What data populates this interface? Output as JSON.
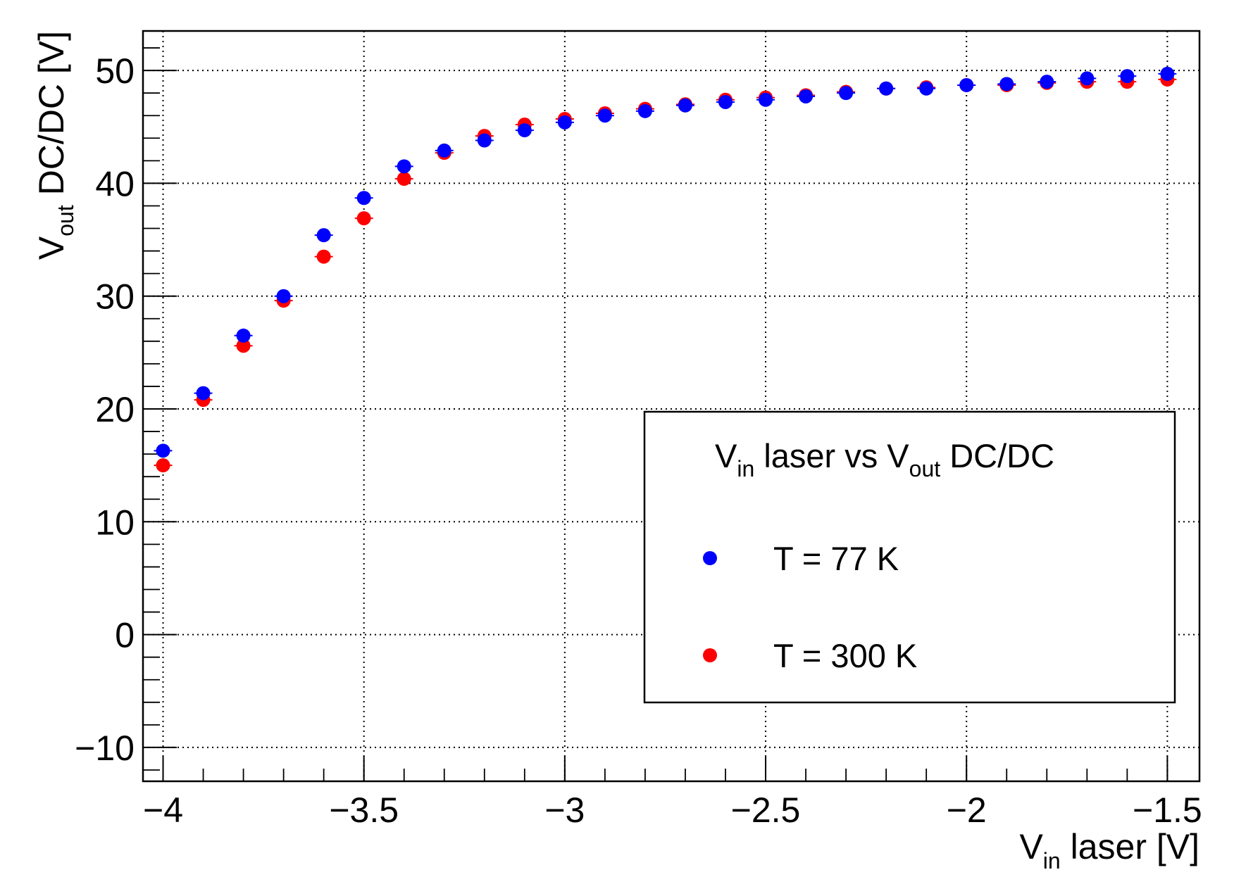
{
  "chart_data": {
    "type": "scatter",
    "title": "",
    "xlabel": {
      "main": "V",
      "sub": "in",
      "rest": " laser [V]"
    },
    "ylabel": {
      "main": "V",
      "sub": "out",
      "rest": " DC/DC [V]"
    },
    "xlim": [
      -4.05,
      -1.42
    ],
    "ylim": [
      -13,
      53.5
    ],
    "grid": true,
    "xticks": [
      -4,
      -3.5,
      -3,
      -2.5,
      -2,
      -1.5
    ],
    "xtick_labels": [
      "−4",
      "−3.5",
      "−3",
      "−2.5",
      "−2",
      "−1.5"
    ],
    "yticks": [
      -10,
      0,
      10,
      20,
      30,
      40,
      50
    ],
    "ytick_labels": [
      "−10",
      "0",
      "10",
      "20",
      "30",
      "40",
      "50"
    ],
    "legend": {
      "position": "center-right",
      "title": {
        "a": "V",
        "a_sub": "in",
        "b": " laser vs V",
        "b_sub": "out",
        "c": " DC/DC"
      }
    },
    "x": [
      -4.0,
      -3.9,
      -3.8,
      -3.7,
      -3.6,
      -3.5,
      -3.4,
      -3.3,
      -3.2,
      -3.1,
      -3.0,
      -2.9,
      -2.8,
      -2.7,
      -2.6,
      -2.5,
      -2.4,
      -2.3,
      -2.2,
      -2.1,
      -2.0,
      -1.9,
      -1.8,
      -1.7,
      -1.6,
      -1.5
    ],
    "series": [
      {
        "name": "T = 300 K",
        "color": "#ff0000",
        "values": [
          15.0,
          20.8,
          25.6,
          29.6,
          33.5,
          36.9,
          40.4,
          42.7,
          44.2,
          45.2,
          45.7,
          46.2,
          46.6,
          47.0,
          47.4,
          47.6,
          47.8,
          48.1,
          48.4,
          48.5,
          48.7,
          48.7,
          48.9,
          49.0,
          49.0,
          49.2
        ]
      },
      {
        "name": "T = 77 K",
        "color": "#0000ff",
        "values": [
          16.3,
          21.4,
          26.5,
          30.0,
          35.4,
          38.7,
          41.5,
          42.9,
          43.8,
          44.7,
          45.4,
          46.0,
          46.4,
          46.9,
          47.2,
          47.4,
          47.7,
          48.0,
          48.4,
          48.4,
          48.7,
          48.8,
          49.0,
          49.3,
          49.5,
          49.7
        ]
      }
    ],
    "legend_order": [
      1,
      0
    ]
  }
}
